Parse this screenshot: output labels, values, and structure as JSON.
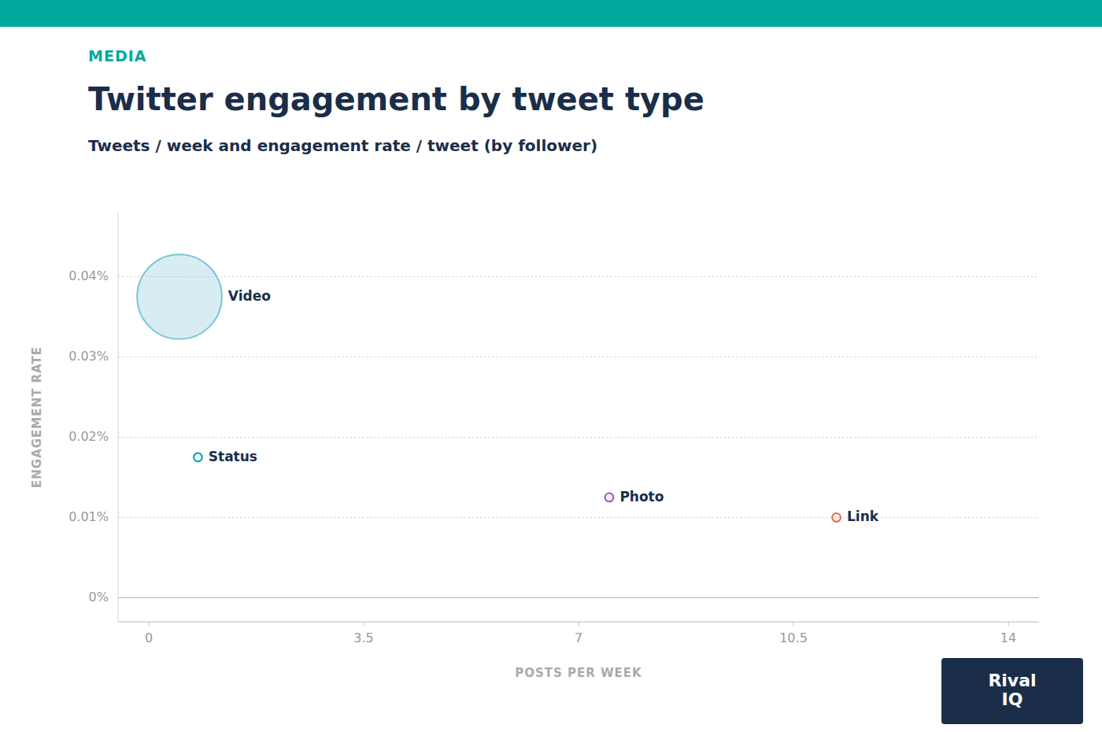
{
  "chart_data": {
    "type": "bubble",
    "title": "Twitter engagement by tweet type",
    "subtitle": "Tweets / week and engagement rate / tweet (by follower)",
    "annotations": [
      "MEDIA",
      "Rival\nIQ"
    ],
    "x_label": "POSTS PER WEEK",
    "y_label": "ENGAGEMENT RATE",
    "labels": [
      "Video",
      "Status",
      "Photo",
      "Link"
    ],
    "x": [
      0.5,
      0.8,
      7.5,
      11.2
    ],
    "values": [
      0.000375,
      0.000175,
      0.000125,
      0.0001
    ],
    "sizes": [
      6000,
      60,
      60,
      60
    ],
    "colors": [
      "#7ac5d8",
      "#00a99d",
      "#9b59b6",
      "#e07040"
    ],
    "xlim": [
      -0.5,
      14.5
    ],
    "ylim": [
      -3e-05,
      0.00048
    ],
    "xticks": [
      0,
      3.5,
      7,
      10.5,
      14
    ],
    "yticks": [
      {
        "value": 0,
        "label": "0%"
      },
      {
        "value": 0.0001,
        "label": "0.01%"
      },
      {
        "value": 0.0002,
        "label": "0.02%"
      },
      {
        "value": 0.0003,
        "label": "0.03%"
      },
      {
        "value": 0.0004,
        "label": "0.04%"
      }
    ],
    "grid": true
  }
}
